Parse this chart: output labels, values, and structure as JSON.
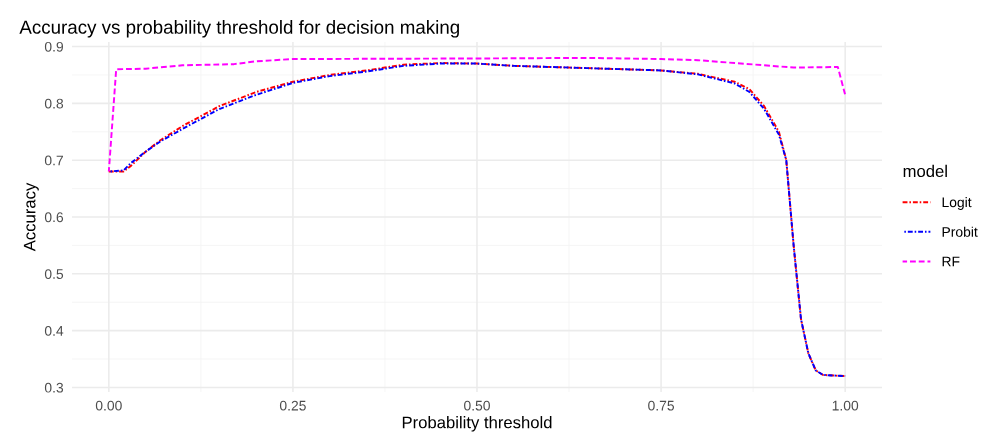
{
  "chart_data": {
    "type": "line",
    "title": "Accuracy vs probability threshold for decision making",
    "xlabel": "Probability threshold",
    "ylabel": "Accuracy",
    "legend_title": "model",
    "xlim": [
      -0.05,
      1.05
    ],
    "ylim": [
      0.292,
      0.908
    ],
    "xticks": [
      {
        "value": 0,
        "label": "0.00"
      },
      {
        "value": 0.25,
        "label": "0.25"
      },
      {
        "value": 0.5,
        "label": "0.50"
      },
      {
        "value": 0.75,
        "label": "0.75"
      },
      {
        "value": 1,
        "label": "1.00"
      }
    ],
    "yticks": [
      0.3,
      0.4,
      0.5,
      0.6,
      0.7,
      0.8,
      0.9
    ],
    "grid": true,
    "legend": "right",
    "series": [
      {
        "name": "Logit",
        "color": "#ff0000",
        "line_style": "dashdot",
        "x": [
          0,
          0.02,
          0.03,
          0.05,
          0.07,
          0.1,
          0.15,
          0.2,
          0.25,
          0.3,
          0.35,
          0.4,
          0.45,
          0.5,
          0.55,
          0.6,
          0.65,
          0.7,
          0.75,
          0.8,
          0.85,
          0.87,
          0.89,
          0.91,
          0.92,
          0.93,
          0.94,
          0.95,
          0.96,
          0.97,
          1.0
        ],
        "values": [
          0.68,
          0.68,
          0.69,
          0.715,
          0.735,
          0.76,
          0.795,
          0.82,
          0.838,
          0.85,
          0.858,
          0.868,
          0.871,
          0.87,
          0.866,
          0.864,
          0.862,
          0.86,
          0.858,
          0.852,
          0.838,
          0.825,
          0.795,
          0.75,
          0.7,
          0.55,
          0.42,
          0.36,
          0.33,
          0.322,
          0.32
        ]
      },
      {
        "name": "Probit",
        "color": "#0000ff",
        "line_style": "dashdot",
        "x": [
          0,
          0.02,
          0.03,
          0.05,
          0.07,
          0.1,
          0.15,
          0.2,
          0.25,
          0.3,
          0.35,
          0.4,
          0.45,
          0.5,
          0.55,
          0.6,
          0.65,
          0.7,
          0.75,
          0.8,
          0.85,
          0.87,
          0.89,
          0.91,
          0.92,
          0.93,
          0.94,
          0.95,
          0.96,
          0.97,
          1.0
        ],
        "values": [
          0.68,
          0.682,
          0.695,
          0.715,
          0.733,
          0.755,
          0.79,
          0.815,
          0.836,
          0.848,
          0.856,
          0.866,
          0.87,
          0.87,
          0.866,
          0.864,
          0.862,
          0.86,
          0.858,
          0.851,
          0.835,
          0.82,
          0.79,
          0.745,
          0.7,
          0.55,
          0.42,
          0.36,
          0.33,
          0.322,
          0.32
        ]
      },
      {
        "name": "RF",
        "color": "#ff00ff",
        "line_style": "dashed",
        "x": [
          0,
          0.01,
          0.05,
          0.1,
          0.17,
          0.2,
          0.25,
          0.5,
          0.65,
          0.75,
          0.8,
          0.85,
          0.9,
          0.93,
          0.99,
          1.0
        ],
        "values": [
          0.68,
          0.86,
          0.861,
          0.867,
          0.869,
          0.874,
          0.878,
          0.879,
          0.88,
          0.878,
          0.876,
          0.871,
          0.866,
          0.863,
          0.864,
          0.815
        ]
      }
    ]
  }
}
